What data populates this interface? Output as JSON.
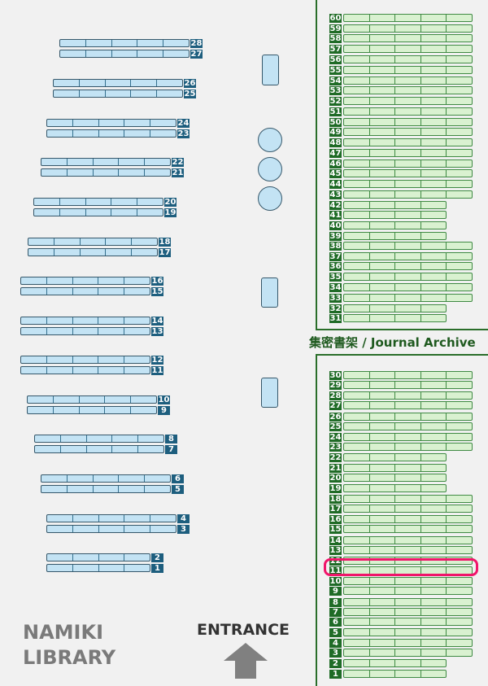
{
  "library_name": {
    "line1": "NAMIKI",
    "line2": "LIBRARY"
  },
  "entrance_label": "ENTRANCE",
  "entrance_icon": "arrow-up-icon",
  "archive_title": "集密書架 / Journal Archive",
  "highlighted_shelf": {
    "section": "journal",
    "number": "11",
    "color": "#f0156a"
  },
  "colors": {
    "general_shelf": "#c3e3f4",
    "general_label": "#1d5e7e",
    "journal_shelf": "#d9f1d0",
    "journal_label": "#1f6b26"
  },
  "general_shelves": [
    {
      "number": "28",
      "cells": 5
    },
    {
      "number": "27",
      "cells": 5
    },
    {
      "number": "26",
      "cells": 5
    },
    {
      "number": "25",
      "cells": 5
    },
    {
      "number": "24",
      "cells": 5
    },
    {
      "number": "23",
      "cells": 5
    },
    {
      "number": "22",
      "cells": 5
    },
    {
      "number": "21",
      "cells": 5
    },
    {
      "number": "20",
      "cells": 5
    },
    {
      "number": "19",
      "cells": 5
    },
    {
      "number": "18",
      "cells": 5
    },
    {
      "number": "17",
      "cells": 5
    },
    {
      "number": "16",
      "cells": 5
    },
    {
      "number": "15",
      "cells": 5
    },
    {
      "number": "14",
      "cells": 5
    },
    {
      "number": "13",
      "cells": 5
    },
    {
      "number": "12",
      "cells": 5
    },
    {
      "number": "11",
      "cells": 5
    },
    {
      "number": "10",
      "cells": 5
    },
    {
      "number": "9",
      "cells": 5
    },
    {
      "number": "8",
      "cells": 5
    },
    {
      "number": "7",
      "cells": 5
    },
    {
      "number": "6",
      "cells": 5
    },
    {
      "number": "5",
      "cells": 5
    },
    {
      "number": "4",
      "cells": 5
    },
    {
      "number": "3",
      "cells": 5
    },
    {
      "number": "2",
      "cells": 4
    },
    {
      "number": "1",
      "cells": 4
    }
  ],
  "journal_shelves": [
    {
      "number": "60",
      "cells": 5
    },
    {
      "number": "59",
      "cells": 5
    },
    {
      "number": "58",
      "cells": 5
    },
    {
      "number": "57",
      "cells": 5
    },
    {
      "number": "56",
      "cells": 5
    },
    {
      "number": "55",
      "cells": 5
    },
    {
      "number": "54",
      "cells": 5
    },
    {
      "number": "53",
      "cells": 5
    },
    {
      "number": "52",
      "cells": 5
    },
    {
      "number": "51",
      "cells": 5
    },
    {
      "number": "50",
      "cells": 5
    },
    {
      "number": "49",
      "cells": 5
    },
    {
      "number": "48",
      "cells": 5
    },
    {
      "number": "47",
      "cells": 5
    },
    {
      "number": "46",
      "cells": 5
    },
    {
      "number": "45",
      "cells": 5
    },
    {
      "number": "44",
      "cells": 5
    },
    {
      "number": "43",
      "cells": 5
    },
    {
      "number": "42",
      "cells": 4
    },
    {
      "number": "41",
      "cells": 4
    },
    {
      "number": "40",
      "cells": 4
    },
    {
      "number": "39",
      "cells": 4
    },
    {
      "number": "38",
      "cells": 5
    },
    {
      "number": "37",
      "cells": 5
    },
    {
      "number": "36",
      "cells": 5
    },
    {
      "number": "35",
      "cells": 5
    },
    {
      "number": "34",
      "cells": 5
    },
    {
      "number": "33",
      "cells": 5
    },
    {
      "number": "32",
      "cells": 4
    },
    {
      "number": "31",
      "cells": 4
    },
    {
      "number": "30",
      "cells": 5
    },
    {
      "number": "29",
      "cells": 5
    },
    {
      "number": "28",
      "cells": 5
    },
    {
      "number": "27",
      "cells": 5
    },
    {
      "number": "26",
      "cells": 5
    },
    {
      "number": "25",
      "cells": 5
    },
    {
      "number": "24",
      "cells": 5
    },
    {
      "number": "23",
      "cells": 5
    },
    {
      "number": "22",
      "cells": 4
    },
    {
      "number": "21",
      "cells": 4
    },
    {
      "number": "20",
      "cells": 4
    },
    {
      "number": "19",
      "cells": 4
    },
    {
      "number": "18",
      "cells": 5
    },
    {
      "number": "17",
      "cells": 5
    },
    {
      "number": "16",
      "cells": 5
    },
    {
      "number": "15",
      "cells": 5
    },
    {
      "number": "14",
      "cells": 5
    },
    {
      "number": "13",
      "cells": 5
    },
    {
      "number": "12",
      "cells": 5
    },
    {
      "number": "11",
      "cells": 5
    },
    {
      "number": "10",
      "cells": 5
    },
    {
      "number": "9",
      "cells": 5
    },
    {
      "number": "8",
      "cells": 5
    },
    {
      "number": "7",
      "cells": 5
    },
    {
      "number": "6",
      "cells": 5
    },
    {
      "number": "5",
      "cells": 5
    },
    {
      "number": "4",
      "cells": 5
    },
    {
      "number": "3",
      "cells": 5
    },
    {
      "number": "2",
      "cells": 4
    },
    {
      "number": "1",
      "cells": 4
    }
  ]
}
